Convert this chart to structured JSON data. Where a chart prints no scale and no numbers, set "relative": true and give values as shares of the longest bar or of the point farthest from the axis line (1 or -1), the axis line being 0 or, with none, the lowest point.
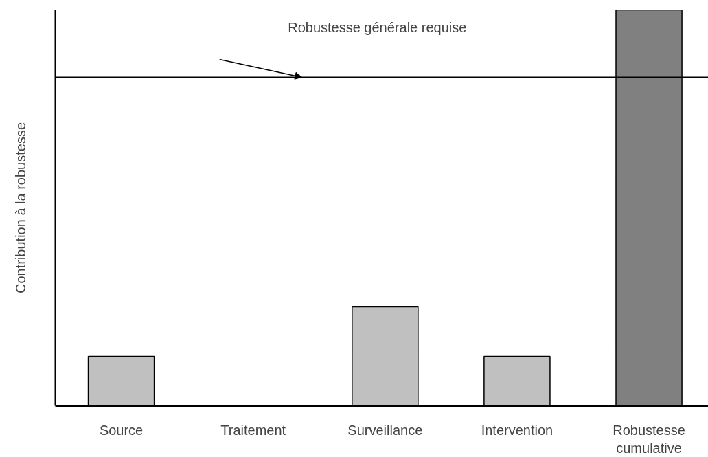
{
  "chart_data": {
    "type": "bar",
    "relative": true,
    "ylabel": "Contribution à la robustesse",
    "categories": [
      "Source",
      "Traitement",
      "Surveillance",
      "Intervention",
      "Robustesse cumulative"
    ],
    "values": [
      0.125,
      0,
      0.25,
      0.125,
      1
    ],
    "colors": [
      "#c0c0c0",
      "#c0c0c0",
      "#c0c0c0",
      "#c0c0c0",
      "#808080"
    ],
    "ref_lines": [
      {
        "axis": "y",
        "value": 0.83,
        "color": "#000000"
      }
    ],
    "annotations": [
      "Robustesse générale requise"
    ],
    "grid": false
  }
}
